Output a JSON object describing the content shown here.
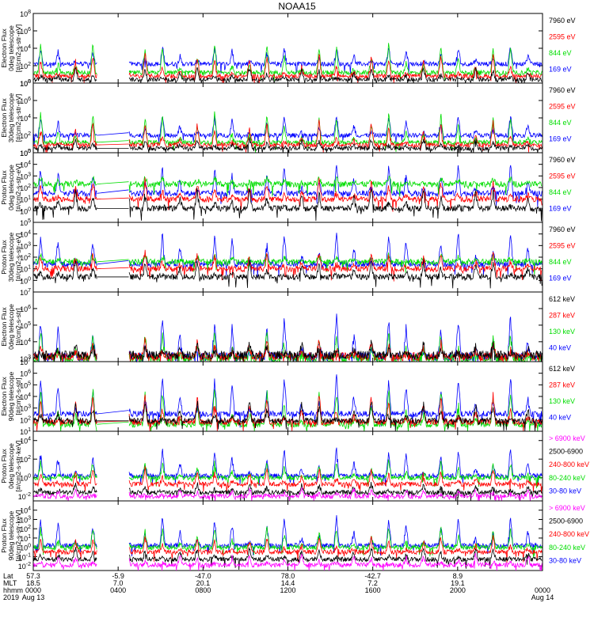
{
  "title": "NOAA15",
  "colors": {
    "blue": "#0000ff",
    "red": "#ff0000",
    "green": "#00dd00",
    "black": "#000000",
    "magenta": "#ff00ff"
  },
  "chart_data": [
    {
      "type": "line",
      "name": "ted-electron-0deg",
      "ylabel": [
        "TED",
        "Electron Flux",
        "0deg telescope",
        "[#/cm2-s-str-eV]"
      ],
      "yticks": [
        {
          "exp": "0",
          "v": 0
        },
        {
          "exp": "2",
          "v": 2
        },
        {
          "exp": "4",
          "v": 4
        },
        {
          "exp": "6",
          "v": 6
        },
        {
          "exp": "8",
          "v": 8
        }
      ],
      "ylim": [
        0,
        8
      ],
      "legend": [
        {
          "label": "7960 eV",
          "color": "#000000"
        },
        {
          "label": "2595 eV",
          "color": "#ff0000"
        },
        {
          "label": "844 eV",
          "color": "#00dd00"
        },
        {
          "label": "169 eV",
          "color": "#0000ff"
        }
      ],
      "series": [
        {
          "name": "169 eV",
          "color": "#0000ff",
          "base": 2.2,
          "peak": 4.2
        },
        {
          "name": "844 eV",
          "color": "#00dd00",
          "base": 1.2,
          "peak": 4.6
        },
        {
          "name": "2595 eV",
          "color": "#ff0000",
          "base": 0.8,
          "peak": 3.4
        },
        {
          "name": "7960 eV",
          "color": "#000000",
          "base": 0.4,
          "peak": 1.8
        }
      ],
      "gap_link": false
    },
    {
      "type": "line",
      "name": "ted-electron-30deg",
      "ylabel": [
        "TED",
        "Electron Flux",
        "30deg telescope",
        "[#/cm2-s-str-eV]"
      ],
      "yticks": [
        {
          "exp": "0",
          "v": 0
        },
        {
          "exp": "2",
          "v": 2
        },
        {
          "exp": "4",
          "v": 4
        },
        {
          "exp": "6",
          "v": 6
        },
        {
          "exp": "8",
          "v": 8
        }
      ],
      "ylim": [
        0,
        8
      ],
      "legend": [
        {
          "label": "7960 eV",
          "color": "#000000"
        },
        {
          "label": "2595 eV",
          "color": "#ff0000"
        },
        {
          "label": "844 eV",
          "color": "#00dd00"
        },
        {
          "label": "169 eV",
          "color": "#0000ff"
        }
      ],
      "series": [
        {
          "name": "169 eV",
          "color": "#0000ff",
          "base": 2.0,
          "peak": 4.4
        },
        {
          "name": "844 eV",
          "color": "#00dd00",
          "base": 1.2,
          "peak": 4.7
        },
        {
          "name": "2595 eV",
          "color": "#ff0000",
          "base": 0.9,
          "peak": 3.6
        },
        {
          "name": "7960 eV",
          "color": "#000000",
          "base": 0.5,
          "peak": 1.6
        }
      ],
      "gap_link": true
    },
    {
      "type": "line",
      "name": "ted-proton-0deg",
      "ylabel": [
        "TED",
        "Proton Flux",
        "0deg telescope",
        "[#/cm2-s-str-eV]"
      ],
      "yticks": [
        {
          "exp": "0",
          "v": 0
        },
        {
          "exp": "1",
          "v": 1
        },
        {
          "exp": "2",
          "v": 2
        },
        {
          "exp": "3",
          "v": 3
        },
        {
          "exp": "4",
          "v": 4
        },
        {
          "exp": "5",
          "v": 5
        }
      ],
      "ylim": [
        -1,
        5
      ],
      "legend": [
        {
          "label": "7960 eV",
          "color": "#000000"
        },
        {
          "label": "2595 eV",
          "color": "#ff0000"
        },
        {
          "label": "844 eV",
          "color": "#00dd00"
        },
        {
          "label": "169 eV",
          "color": "#0000ff"
        }
      ],
      "series": [
        {
          "name": "169 eV",
          "color": "#0000ff",
          "base": 1.5,
          "peak": 4.0
        },
        {
          "name": "844 eV",
          "color": "#00dd00",
          "base": 2.3,
          "peak": 2.9
        },
        {
          "name": "2595 eV",
          "color": "#ff0000",
          "base": 1.0,
          "peak": 2.6
        },
        {
          "name": "7960 eV",
          "color": "#000000",
          "base": 0.2,
          "peak": 1.9
        }
      ],
      "gap_link": true
    },
    {
      "type": "line",
      "name": "ted-proton-30deg",
      "ylabel": [
        "TED",
        "Proton Flux",
        "30deg telescope",
        "[#/cm2-s-str-eV]"
      ],
      "yticks": [
        {
          "exp": "0",
          "v": 0
        },
        {
          "exp": "1",
          "v": 1
        },
        {
          "exp": "2",
          "v": 2
        },
        {
          "exp": "3",
          "v": 3
        },
        {
          "exp": "4",
          "v": 4
        },
        {
          "exp": "5",
          "v": 5
        }
      ],
      "ylim": [
        -1,
        5
      ],
      "legend": [
        {
          "label": "7960 eV",
          "color": "#000000"
        },
        {
          "label": "2595 eV",
          "color": "#ff0000"
        },
        {
          "label": "844 eV",
          "color": "#00dd00"
        },
        {
          "label": "169 eV",
          "color": "#0000ff"
        }
      ],
      "series": [
        {
          "name": "169 eV",
          "color": "#0000ff",
          "base": 1.4,
          "peak": 4.2
        },
        {
          "name": "844 eV",
          "color": "#00dd00",
          "base": 1.6,
          "peak": 2.2
        },
        {
          "name": "2595 eV",
          "color": "#ff0000",
          "base": 1.0,
          "peak": 2.5
        },
        {
          "name": "7960 eV",
          "color": "#000000",
          "base": 0.3,
          "peak": 1.6
        }
      ],
      "gap_link": true
    },
    {
      "type": "line",
      "name": "meped-electron-0deg",
      "ylabel": [
        "MEPED",
        "Electron Flux",
        "0deg telescope",
        "[#/cm2-s-str]"
      ],
      "yticks": [
        {
          "exp": "3",
          "v": 3
        },
        {
          "exp": "4",
          "v": 4
        },
        {
          "exp": "5",
          "v": 5
        },
        {
          "exp": "6",
          "v": 6
        },
        {
          "exp": "7",
          "v": 7
        }
      ],
      "ylim": [
        2.8,
        7
      ],
      "legend": [
        {
          "label": "612 keV",
          "color": "#000000"
        },
        {
          "label": "287 keV",
          "color": "#ff0000"
        },
        {
          "label": "130 keV",
          "color": "#00dd00"
        },
        {
          "label": "40 keV",
          "color": "#0000ff"
        }
      ],
      "series": [
        {
          "name": "40 keV",
          "color": "#0000ff",
          "base": 3.1,
          "peak": 5.6
        },
        {
          "name": "130 keV",
          "color": "#00dd00",
          "base": 3.0,
          "peak": 4.6
        },
        {
          "name": "287 keV",
          "color": "#ff0000",
          "base": 3.1,
          "peak": 4.0
        },
        {
          "name": "612 keV",
          "color": "#000000",
          "base": 3.2,
          "peak": 3.9
        }
      ],
      "gap_link": false
    },
    {
      "type": "line",
      "name": "meped-electron-90deg",
      "ylabel": [
        "MEPED",
        "Electron Flux",
        "90deg telescope",
        "[#/cm2-s-str]"
      ],
      "yticks": [
        {
          "exp": "1",
          "v": 1
        },
        {
          "exp": "2",
          "v": 2
        },
        {
          "exp": "3",
          "v": 3
        },
        {
          "exp": "4",
          "v": 4
        },
        {
          "exp": "5",
          "v": 5
        },
        {
          "exp": "6",
          "v": 6
        },
        {
          "exp": "7",
          "v": 7
        }
      ],
      "ylim": [
        1,
        7
      ],
      "legend": [
        {
          "label": "612 keV",
          "color": "#000000"
        },
        {
          "label": "287 keV",
          "color": "#ff0000"
        },
        {
          "label": "130 keV",
          "color": "#00dd00"
        },
        {
          "label": "40 keV",
          "color": "#0000ff"
        }
      ],
      "series": [
        {
          "name": "40 keV",
          "color": "#0000ff",
          "base": 2.5,
          "peak": 5.8
        },
        {
          "name": "130 keV",
          "color": "#00dd00",
          "base": 1.6,
          "peak": 4.8
        },
        {
          "name": "287 keV",
          "color": "#ff0000",
          "base": 1.8,
          "peak": 4.2
        },
        {
          "name": "612 keV",
          "color": "#000000",
          "base": 1.9,
          "peak": 3.6
        }
      ],
      "gap_link": true
    },
    {
      "type": "line",
      "name": "meped-proton-0deg",
      "ylabel": [
        "MEPED",
        "Proton Flux",
        "0deg telescope",
        "[#/cm2-s-str-keV]"
      ],
      "yticks": [
        {
          "exp": "-2",
          "v": -2
        },
        {
          "exp": "0",
          "v": 0
        },
        {
          "exp": "2",
          "v": 2
        },
        {
          "exp": "4",
          "v": 4
        }
      ],
      "ylim": [
        -2.5,
        5
      ],
      "legend": [
        {
          "label": "> 6900 keV",
          "color": "#ff00ff"
        },
        {
          "label": "2500-6900",
          "color": "#000000"
        },
        {
          "label": "240-800 keV",
          "color": "#ff0000"
        },
        {
          "label": "80-240 keV",
          "color": "#00dd00"
        },
        {
          "label": "30-80 keV",
          "color": "#0000ff"
        }
      ],
      "series": [
        {
          "name": "30-80 keV",
          "color": "#0000ff",
          "base": 0.2,
          "peak": 3.2
        },
        {
          "name": "80-240 keV",
          "color": "#00dd00",
          "base": 0.0,
          "peak": 1.8
        },
        {
          "name": "240-800 keV",
          "color": "#ff0000",
          "base": -0.7,
          "peak": 1.0
        },
        {
          "name": "2500-6900",
          "color": "#000000",
          "base": -1.6,
          "peak": -0.6
        },
        {
          "name": "> 6900 keV",
          "color": "#ff00ff",
          "base": -2.0,
          "peak": -1.2
        }
      ],
      "gap_link": false
    },
    {
      "type": "line",
      "name": "meped-proton-90deg",
      "ylabel": [
        "MEPED",
        "Proton Flux",
        "90deg telescope",
        "[#/cm2-s-str-keV]"
      ],
      "yticks": [
        {
          "exp": "-2",
          "v": -2
        },
        {
          "exp": "-1",
          "v": -1
        },
        {
          "exp": "0",
          "v": 0
        },
        {
          "exp": "1",
          "v": 1
        },
        {
          "exp": "2",
          "v": 2
        },
        {
          "exp": "3",
          "v": 3
        },
        {
          "exp": "4",
          "v": 4
        }
      ],
      "ylim": [
        -2.5,
        5
      ],
      "legend": [
        {
          "label": "> 6900 keV",
          "color": "#ff00ff"
        },
        {
          "label": "2500-6900",
          "color": "#000000"
        },
        {
          "label": "240-800 keV",
          "color": "#ff0000"
        },
        {
          "label": "80-240 keV",
          "color": "#00dd00"
        },
        {
          "label": "30-80 keV",
          "color": "#0000ff"
        }
      ],
      "series": [
        {
          "name": "30-80 keV",
          "color": "#0000ff",
          "base": 0.2,
          "peak": 3.4
        },
        {
          "name": "80-240 keV",
          "color": "#00dd00",
          "base": 0.0,
          "peak": 2.2
        },
        {
          "name": "240-800 keV",
          "color": "#ff0000",
          "base": -0.5,
          "peak": 1.2
        },
        {
          "name": "2500-6900",
          "color": "#000000",
          "base": -1.3,
          "peak": 0.0
        },
        {
          "name": "> 6900 keV",
          "color": "#ff00ff",
          "base": -1.9,
          "peak": -0.8
        }
      ],
      "gap_link": false
    }
  ],
  "x_axis": {
    "time_range_hours": [
      0,
      24
    ],
    "data_gap_hours": [
      3.0,
      4.5
    ],
    "row_labels": [
      "Lat",
      "MLT",
      "hhmm",
      "2019"
    ],
    "ticks": [
      {
        "hours": 0,
        "lat": "57.3",
        "mlt": "18.5",
        "hhmm": "0000",
        "date": "Aug 13"
      },
      {
        "hours": 4,
        "lat": "-5.9",
        "mlt": "7.0",
        "hhmm": "0400",
        "date": ""
      },
      {
        "hours": 8,
        "lat": "-47.0",
        "mlt": "20.1",
        "hhmm": "0800",
        "date": ""
      },
      {
        "hours": 12,
        "lat": "78.0",
        "mlt": "14.4",
        "hhmm": "1200",
        "date": ""
      },
      {
        "hours": 16,
        "lat": "-42.7",
        "mlt": "7.2",
        "hhmm": "1600",
        "date": ""
      },
      {
        "hours": 20,
        "lat": "8.9",
        "mlt": "19.1",
        "hhmm": "2000",
        "date": ""
      },
      {
        "hours": 24,
        "lat": "",
        "mlt": "",
        "hhmm": "0000",
        "date": "Aug 14"
      }
    ]
  }
}
